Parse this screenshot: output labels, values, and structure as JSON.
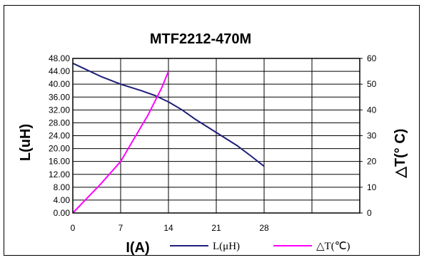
{
  "chart_data": {
    "type": "line",
    "title": "MTF2212-470M",
    "xlabel": "I(A)",
    "ylabel_left": "L(uH)",
    "ylabel_right": "△T(° C)",
    "x_ticks": [
      "0",
      "7",
      "14",
      "21",
      "28"
    ],
    "y_left_ticks": [
      "0.00",
      "4.00",
      "8.00",
      "12.00",
      "16.00",
      "20.00",
      "24.00",
      "28.00",
      "32.00",
      "36.00",
      "40.00",
      "44.00",
      "48.00"
    ],
    "y_right_ticks": [
      "0",
      "10",
      "20",
      "30",
      "40",
      "50",
      "60"
    ],
    "xlim": [
      0,
      42
    ],
    "ylim_left": [
      0,
      48
    ],
    "ylim_right": [
      0,
      60
    ],
    "grid": true,
    "legend_position": "bottom",
    "series": [
      {
        "name": "L(μH)",
        "axis": "left",
        "color": "#1f1f7a",
        "x": [
          0,
          2,
          4,
          7,
          10,
          12,
          14,
          16,
          18,
          21,
          24,
          26,
          28
        ],
        "y": [
          46.5,
          44.5,
          42.5,
          40.0,
          38.0,
          36.5,
          34.5,
          32.0,
          29.0,
          25.0,
          21.0,
          17.8,
          14.5
        ]
      },
      {
        "name": "△T(℃)",
        "axis": "right",
        "color": "#ff00ff",
        "x": [
          0,
          2,
          4,
          7,
          9,
          11,
          13,
          14
        ],
        "y": [
          0,
          5.5,
          11,
          20,
          29,
          38,
          48.5,
          55
        ]
      }
    ]
  }
}
